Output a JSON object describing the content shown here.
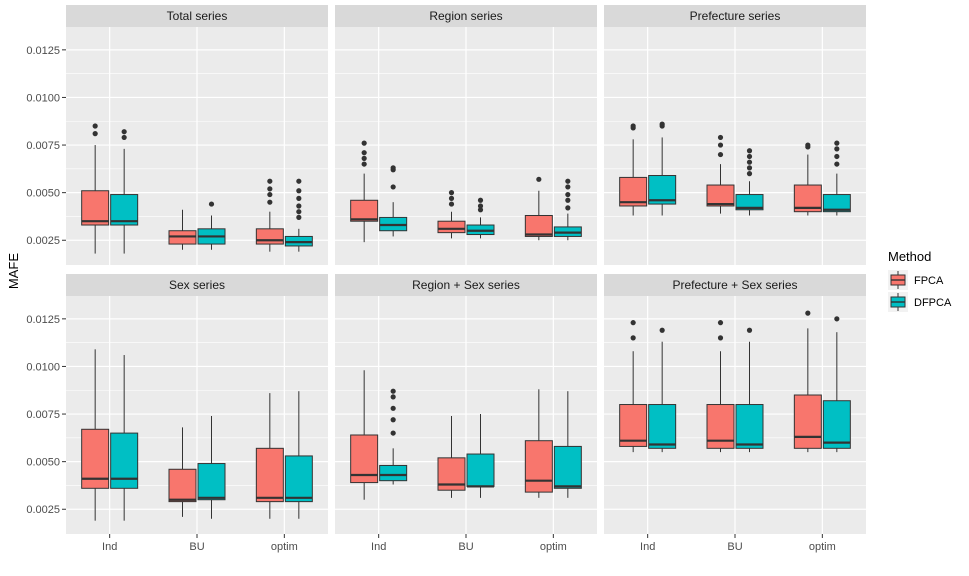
{
  "chart_data": {
    "type": "boxplot",
    "ylabel": "MAFE",
    "xlabel": "",
    "ylim": [
      0.0012,
      0.0137
    ],
    "yticks": [
      {
        "value": 0.0025,
        "label": "0.0025"
      },
      {
        "value": 0.005,
        "label": "0.0050"
      },
      {
        "value": 0.0075,
        "label": "0.0075"
      },
      {
        "value": 0.01,
        "label": "0.0100"
      },
      {
        "value": 0.0125,
        "label": "0.0125"
      }
    ],
    "categories": [
      "Ind",
      "BU",
      "optim"
    ],
    "legend": {
      "title": "Method",
      "position": "right",
      "entries": [
        {
          "name": "FPCA",
          "color": "#F8766D"
        },
        {
          "name": "DFPCA",
          "color": "#00BFC4"
        }
      ]
    },
    "panels": [
      {
        "title": "Total series",
        "boxes": [
          {
            "category": "Ind",
            "method": "FPCA",
            "lower": 0.0018,
            "q1": 0.0033,
            "median": 0.0035,
            "q3": 0.0051,
            "upper": 0.0075,
            "outliers": [
              0.0081,
              0.0085
            ]
          },
          {
            "category": "Ind",
            "method": "DFPCA",
            "lower": 0.0018,
            "q1": 0.0033,
            "median": 0.0035,
            "q3": 0.0049,
            "upper": 0.0073,
            "outliers": [
              0.0079,
              0.0082
            ]
          },
          {
            "category": "BU",
            "method": "FPCA",
            "lower": 0.002,
            "q1": 0.0023,
            "median": 0.0027,
            "q3": 0.003,
            "upper": 0.0041,
            "outliers": []
          },
          {
            "category": "BU",
            "method": "DFPCA",
            "lower": 0.002,
            "q1": 0.0023,
            "median": 0.0027,
            "q3": 0.0031,
            "upper": 0.0038,
            "outliers": [
              0.0044
            ]
          },
          {
            "category": "optim",
            "method": "FPCA",
            "lower": 0.0019,
            "q1": 0.0023,
            "median": 0.0025,
            "q3": 0.0031,
            "upper": 0.004,
            "outliers": [
              0.0045,
              0.0049,
              0.0052,
              0.0056
            ]
          },
          {
            "category": "optim",
            "method": "DFPCA",
            "lower": 0.0019,
            "q1": 0.0022,
            "median": 0.0024,
            "q3": 0.0027,
            "upper": 0.0031,
            "outliers": [
              0.0037,
              0.004,
              0.0043,
              0.0047,
              0.0051,
              0.0056
            ]
          }
        ]
      },
      {
        "title": "Region series",
        "boxes": [
          {
            "category": "Ind",
            "method": "FPCA",
            "lower": 0.0024,
            "q1": 0.0035,
            "median": 0.0036,
            "q3": 0.0046,
            "upper": 0.006,
            "outliers": [
              0.0065,
              0.0068,
              0.0071,
              0.0076
            ]
          },
          {
            "category": "Ind",
            "method": "DFPCA",
            "lower": 0.0027,
            "q1": 0.003,
            "median": 0.0033,
            "q3": 0.0037,
            "upper": 0.0045,
            "outliers": [
              0.0053,
              0.0062,
              0.0063
            ]
          },
          {
            "category": "BU",
            "method": "FPCA",
            "lower": 0.0026,
            "q1": 0.0029,
            "median": 0.0031,
            "q3": 0.0035,
            "upper": 0.004,
            "outliers": [
              0.0044,
              0.0047,
              0.005
            ]
          },
          {
            "category": "BU",
            "method": "DFPCA",
            "lower": 0.0026,
            "q1": 0.0028,
            "median": 0.003,
            "q3": 0.0033,
            "upper": 0.0037,
            "outliers": [
              0.0041,
              0.0043,
              0.0046
            ]
          },
          {
            "category": "optim",
            "method": "FPCA",
            "lower": 0.0025,
            "q1": 0.0027,
            "median": 0.0028,
            "q3": 0.0038,
            "upper": 0.0051,
            "outliers": [
              0.0057
            ]
          },
          {
            "category": "optim",
            "method": "DFPCA",
            "lower": 0.0025,
            "q1": 0.0027,
            "median": 0.0029,
            "q3": 0.0032,
            "upper": 0.0039,
            "outliers": [
              0.0042,
              0.0046,
              0.0049,
              0.0053,
              0.0056
            ]
          }
        ]
      },
      {
        "title": "Prefecture series",
        "boxes": [
          {
            "category": "Ind",
            "method": "FPCA",
            "lower": 0.0038,
            "q1": 0.0043,
            "median": 0.0045,
            "q3": 0.0058,
            "upper": 0.0078,
            "outliers": [
              0.0084,
              0.0085
            ]
          },
          {
            "category": "Ind",
            "method": "DFPCA",
            "lower": 0.0038,
            "q1": 0.0044,
            "median": 0.0046,
            "q3": 0.0059,
            "upper": 0.0079,
            "outliers": [
              0.0085,
              0.0086
            ]
          },
          {
            "category": "BU",
            "method": "FPCA",
            "lower": 0.0039,
            "q1": 0.0043,
            "median": 0.0044,
            "q3": 0.0054,
            "upper": 0.0065,
            "outliers": [
              0.007,
              0.0075,
              0.0079
            ]
          },
          {
            "category": "BU",
            "method": "DFPCA",
            "lower": 0.0038,
            "q1": 0.0041,
            "median": 0.0042,
            "q3": 0.0049,
            "upper": 0.0056,
            "outliers": [
              0.006,
              0.0063,
              0.0066,
              0.0069,
              0.0072
            ]
          },
          {
            "category": "optim",
            "method": "FPCA",
            "lower": 0.0038,
            "q1": 0.004,
            "median": 0.0042,
            "q3": 0.0054,
            "upper": 0.007,
            "outliers": [
              0.0074,
              0.0075
            ]
          },
          {
            "category": "optim",
            "method": "DFPCA",
            "lower": 0.0038,
            "q1": 0.004,
            "median": 0.0041,
            "q3": 0.0049,
            "upper": 0.006,
            "outliers": [
              0.0065,
              0.0069,
              0.0073,
              0.0076
            ]
          }
        ]
      },
      {
        "title": "Sex series",
        "boxes": [
          {
            "category": "Ind",
            "method": "FPCA",
            "lower": 0.0019,
            "q1": 0.0036,
            "median": 0.0041,
            "q3": 0.0067,
            "upper": 0.0109,
            "outliers": []
          },
          {
            "category": "Ind",
            "method": "DFPCA",
            "lower": 0.0019,
            "q1": 0.0036,
            "median": 0.0041,
            "q3": 0.0065,
            "upper": 0.0106,
            "outliers": []
          },
          {
            "category": "BU",
            "method": "FPCA",
            "lower": 0.0021,
            "q1": 0.0029,
            "median": 0.003,
            "q3": 0.0046,
            "upper": 0.0068,
            "outliers": []
          },
          {
            "category": "BU",
            "method": "DFPCA",
            "lower": 0.002,
            "q1": 0.003,
            "median": 0.0031,
            "q3": 0.0049,
            "upper": 0.0074,
            "outliers": []
          },
          {
            "category": "optim",
            "method": "FPCA",
            "lower": 0.002,
            "q1": 0.0029,
            "median": 0.0031,
            "q3": 0.0057,
            "upper": 0.0086,
            "outliers": []
          },
          {
            "category": "optim",
            "method": "DFPCA",
            "lower": 0.002,
            "q1": 0.0029,
            "median": 0.0031,
            "q3": 0.0053,
            "upper": 0.0087,
            "outliers": []
          }
        ]
      },
      {
        "title": "Region + Sex series",
        "boxes": [
          {
            "category": "Ind",
            "method": "FPCA",
            "lower": 0.003,
            "q1": 0.0039,
            "median": 0.0043,
            "q3": 0.0064,
            "upper": 0.0098,
            "outliers": []
          },
          {
            "category": "Ind",
            "method": "DFPCA",
            "lower": 0.0038,
            "q1": 0.004,
            "median": 0.0043,
            "q3": 0.0048,
            "upper": 0.0057,
            "outliers": [
              0.0065,
              0.0072,
              0.0078,
              0.0084,
              0.0087
            ]
          },
          {
            "category": "BU",
            "method": "FPCA",
            "lower": 0.0031,
            "q1": 0.0035,
            "median": 0.0038,
            "q3": 0.0052,
            "upper": 0.0074,
            "outliers": []
          },
          {
            "category": "BU",
            "method": "DFPCA",
            "lower": 0.0031,
            "q1": 0.0037,
            "median": 0.0037,
            "q3": 0.0054,
            "upper": 0.0075,
            "outliers": []
          },
          {
            "category": "optim",
            "method": "FPCA",
            "lower": 0.0031,
            "q1": 0.0034,
            "median": 0.004,
            "q3": 0.0061,
            "upper": 0.0088,
            "outliers": []
          },
          {
            "category": "optim",
            "method": "DFPCA",
            "lower": 0.0031,
            "q1": 0.0036,
            "median": 0.0037,
            "q3": 0.0058,
            "upper": 0.0087,
            "outliers": []
          }
        ]
      },
      {
        "title": "Prefecture + Sex series",
        "boxes": [
          {
            "category": "Ind",
            "method": "FPCA",
            "lower": 0.0055,
            "q1": 0.0058,
            "median": 0.0061,
            "q3": 0.008,
            "upper": 0.0108,
            "outliers": [
              0.0115,
              0.0123
            ]
          },
          {
            "category": "Ind",
            "method": "DFPCA",
            "lower": 0.0055,
            "q1": 0.0057,
            "median": 0.0059,
            "q3": 0.008,
            "upper": 0.0113,
            "outliers": [
              0.0119
            ]
          },
          {
            "category": "BU",
            "method": "FPCA",
            "lower": 0.0055,
            "q1": 0.0057,
            "median": 0.0061,
            "q3": 0.008,
            "upper": 0.0108,
            "outliers": [
              0.0115,
              0.0123
            ]
          },
          {
            "category": "BU",
            "method": "DFPCA",
            "lower": 0.0055,
            "q1": 0.0057,
            "median": 0.0059,
            "q3": 0.008,
            "upper": 0.0113,
            "outliers": [
              0.0119
            ]
          },
          {
            "category": "optim",
            "method": "FPCA",
            "lower": 0.0055,
            "q1": 0.0057,
            "median": 0.0063,
            "q3": 0.0085,
            "upper": 0.012,
            "outliers": [
              0.0128
            ]
          },
          {
            "category": "optim",
            "method": "DFPCA",
            "lower": 0.0055,
            "q1": 0.0057,
            "median": 0.006,
            "q3": 0.0082,
            "upper": 0.0118,
            "outliers": [
              0.0125
            ]
          }
        ]
      }
    ]
  }
}
